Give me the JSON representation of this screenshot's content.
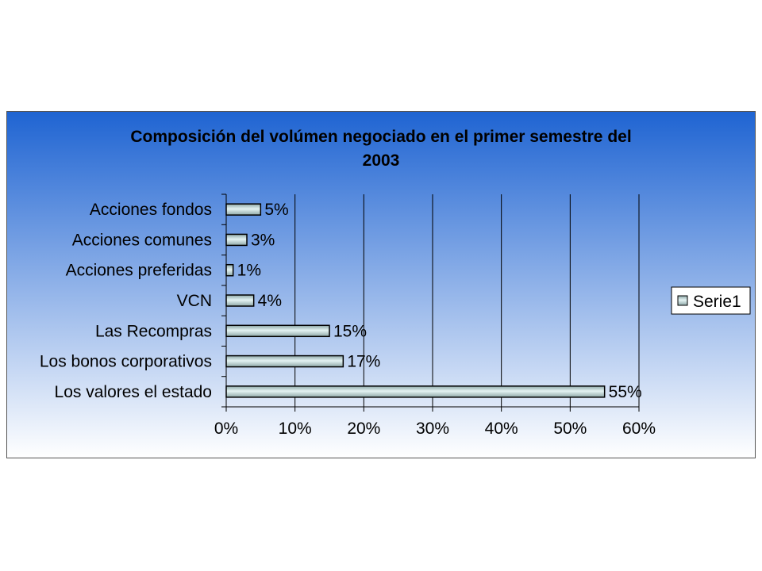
{
  "chart_data": {
    "type": "bar",
    "orientation": "horizontal",
    "title_lines": [
      "Composición del volúmen negociado en el primer semestre del",
      "2003"
    ],
    "categories": [
      "Acciones fondos",
      "Acciones comunes",
      "Acciones preferidas",
      "VCN",
      "Las Recompras",
      "Los bonos corporativos",
      "Los valores el estado"
    ],
    "series": [
      {
        "name": "Serie1",
        "values": [
          5,
          3,
          1,
          4,
          15,
          17,
          55
        ]
      }
    ],
    "data_labels": [
      "5%",
      "3%",
      "1%",
      "4%",
      "15%",
      "17%",
      "55%"
    ],
    "x_ticks": [
      "0%",
      "10%",
      "20%",
      "30%",
      "40%",
      "50%",
      "60%"
    ],
    "xlim": [
      0,
      60
    ],
    "grid": "vertical",
    "legend": "right",
    "colors": {
      "bar_fill_light": "#e4f3f3",
      "bar_fill_dark": "#8ea8a8",
      "background_top": "#1f64d2",
      "background_bottom": "#ffffff"
    }
  }
}
